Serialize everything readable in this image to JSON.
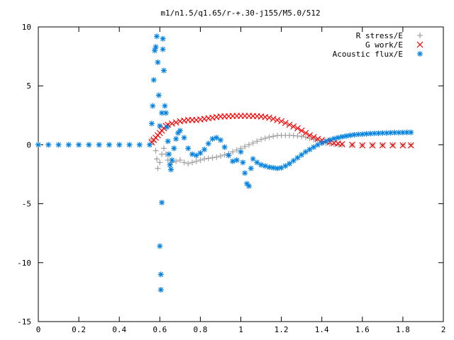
{
  "chart_data": {
    "type": "scatter",
    "title": "m1/n1.5/q1.65/r-+.30-j155/M5.0/512",
    "xlim": [
      0,
      2
    ],
    "ylim": [
      -15,
      10
    ],
    "x_ticks": [
      0,
      0.2,
      0.4,
      0.6,
      0.8,
      1,
      1.2,
      1.4,
      1.6,
      1.8,
      2
    ],
    "x_tick_labels": [
      "0",
      "0.2",
      "0.4",
      "0.6",
      "0.8",
      "1",
      "1.2",
      "1.4",
      "1.6",
      "1.8",
      "2"
    ],
    "y_ticks": [
      10,
      5,
      0,
      -5,
      -10,
      -15
    ],
    "y_tick_labels": [
      "10",
      "5",
      "0",
      "-5",
      "-10",
      "-15"
    ],
    "grid": false,
    "legend_position": "top-right",
    "series": [
      {
        "name": "R stress/E",
        "marker": "plus",
        "color": "#a0a0a0",
        "points": [
          [
            0.56,
            0.5
          ],
          [
            0.57,
            0.3
          ],
          [
            0.58,
            -0.5
          ],
          [
            0.585,
            -1.2
          ],
          [
            0.59,
            -2.0
          ],
          [
            0.6,
            -1.5
          ],
          [
            0.61,
            -0.8
          ],
          [
            0.62,
            -0.3
          ],
          [
            0.63,
            -0.8
          ],
          [
            0.64,
            -1.3
          ],
          [
            0.66,
            -1.5
          ],
          [
            0.68,
            -1.4
          ],
          [
            0.7,
            -1.3
          ],
          [
            0.72,
            -1.5
          ],
          [
            0.74,
            -1.6
          ],
          [
            0.76,
            -1.5
          ],
          [
            0.78,
            -1.4
          ],
          [
            0.8,
            -1.3
          ],
          [
            0.82,
            -1.2
          ],
          [
            0.84,
            -1.15
          ],
          [
            0.86,
            -1.1
          ],
          [
            0.88,
            -1.05
          ],
          [
            0.9,
            -0.95
          ],
          [
            0.92,
            -0.85
          ],
          [
            0.94,
            -0.75
          ],
          [
            0.96,
            -0.6
          ],
          [
            0.98,
            -0.45
          ],
          [
            1.0,
            -0.3
          ],
          [
            1.02,
            -0.15
          ],
          [
            1.04,
            0.0
          ],
          [
            1.06,
            0.15
          ],
          [
            1.08,
            0.3
          ],
          [
            1.1,
            0.45
          ],
          [
            1.12,
            0.55
          ],
          [
            1.14,
            0.65
          ],
          [
            1.16,
            0.72
          ],
          [
            1.18,
            0.78
          ],
          [
            1.2,
            0.8
          ],
          [
            1.22,
            0.8
          ],
          [
            1.24,
            0.8
          ],
          [
            1.26,
            0.78
          ],
          [
            1.28,
            0.75
          ],
          [
            1.3,
            0.7
          ],
          [
            1.32,
            0.65
          ],
          [
            1.34,
            0.55
          ],
          [
            1.36,
            0.45
          ],
          [
            1.38,
            0.35
          ],
          [
            1.4,
            0.25
          ],
          [
            1.42,
            0.15
          ],
          [
            1.44,
            0.08
          ],
          [
            1.46,
            0.03
          ],
          [
            1.48,
            0.0
          ],
          [
            1.5,
            -0.02
          ],
          [
            1.55,
            -0.03
          ],
          [
            1.6,
            -0.03
          ],
          [
            1.65,
            -0.02
          ],
          [
            1.7,
            -0.02
          ],
          [
            1.75,
            -0.01
          ],
          [
            1.8,
            -0.01
          ],
          [
            1.84,
            0.0
          ]
        ]
      },
      {
        "name": "G work/E",
        "marker": "cross",
        "color": "#ff0000",
        "points": [
          [
            0.56,
            0.2
          ],
          [
            0.57,
            0.4
          ],
          [
            0.58,
            0.6
          ],
          [
            0.59,
            0.8
          ],
          [
            0.6,
            1.0
          ],
          [
            0.61,
            1.2
          ],
          [
            0.62,
            1.4
          ],
          [
            0.63,
            1.6
          ],
          [
            0.64,
            1.7
          ],
          [
            0.66,
            1.8
          ],
          [
            0.68,
            1.9
          ],
          [
            0.7,
            2.0
          ],
          [
            0.72,
            2.05
          ],
          [
            0.74,
            2.1
          ],
          [
            0.76,
            2.1
          ],
          [
            0.78,
            2.1
          ],
          [
            0.8,
            2.15
          ],
          [
            0.82,
            2.2
          ],
          [
            0.84,
            2.25
          ],
          [
            0.86,
            2.3
          ],
          [
            0.88,
            2.35
          ],
          [
            0.9,
            2.4
          ],
          [
            0.92,
            2.4
          ],
          [
            0.94,
            2.42
          ],
          [
            0.96,
            2.44
          ],
          [
            0.98,
            2.45
          ],
          [
            1.0,
            2.45
          ],
          [
            1.02,
            2.45
          ],
          [
            1.04,
            2.45
          ],
          [
            1.06,
            2.44
          ],
          [
            1.08,
            2.42
          ],
          [
            1.1,
            2.4
          ],
          [
            1.12,
            2.35
          ],
          [
            1.14,
            2.3
          ],
          [
            1.16,
            2.2
          ],
          [
            1.18,
            2.1
          ],
          [
            1.2,
            2.0
          ],
          [
            1.22,
            1.85
          ],
          [
            1.24,
            1.7
          ],
          [
            1.26,
            1.55
          ],
          [
            1.28,
            1.4
          ],
          [
            1.3,
            1.2
          ],
          [
            1.32,
            1.0
          ],
          [
            1.34,
            0.8
          ],
          [
            1.36,
            0.65
          ],
          [
            1.38,
            0.5
          ],
          [
            1.4,
            0.4
          ],
          [
            1.42,
            0.3
          ],
          [
            1.44,
            0.22
          ],
          [
            1.46,
            0.15
          ],
          [
            1.48,
            0.1
          ],
          [
            1.5,
            0.05
          ],
          [
            1.55,
            0.0
          ],
          [
            1.6,
            -0.05
          ],
          [
            1.65,
            -0.05
          ],
          [
            1.7,
            -0.05
          ],
          [
            1.75,
            -0.05
          ],
          [
            1.8,
            -0.05
          ],
          [
            1.84,
            -0.05
          ]
        ]
      },
      {
        "name": "Acoustic flux/E",
        "marker": "star",
        "color": "#0080e0",
        "points": [
          [
            0.0,
            0.0
          ],
          [
            0.05,
            0.0
          ],
          [
            0.1,
            0.0
          ],
          [
            0.15,
            0.0
          ],
          [
            0.2,
            0.0
          ],
          [
            0.25,
            0.0
          ],
          [
            0.3,
            0.0
          ],
          [
            0.35,
            0.0
          ],
          [
            0.4,
            0.0
          ],
          [
            0.45,
            0.0
          ],
          [
            0.5,
            0.0
          ],
          [
            0.55,
            0.0
          ],
          [
            0.56,
            1.8
          ],
          [
            0.565,
            3.3
          ],
          [
            0.57,
            5.5
          ],
          [
            0.575,
            8.0
          ],
          [
            0.58,
            8.3
          ],
          [
            0.585,
            9.2
          ],
          [
            0.59,
            7.0
          ],
          [
            0.595,
            4.2
          ],
          [
            0.6,
            1.6
          ],
          [
            0.6,
            -8.6
          ],
          [
            0.605,
            -11.0
          ],
          [
            0.605,
            -12.3
          ],
          [
            0.61,
            -4.9
          ],
          [
            0.61,
            2.7
          ],
          [
            0.615,
            8.1
          ],
          [
            0.615,
            9.0
          ],
          [
            0.62,
            6.3
          ],
          [
            0.625,
            3.3
          ],
          [
            0.63,
            2.7
          ],
          [
            0.635,
            1.5
          ],
          [
            0.64,
            0.3
          ],
          [
            0.645,
            -0.8
          ],
          [
            0.65,
            -1.7
          ],
          [
            0.655,
            -2.1
          ],
          [
            0.66,
            -1.3
          ],
          [
            0.67,
            -0.3
          ],
          [
            0.68,
            0.5
          ],
          [
            0.69,
            1.0
          ],
          [
            0.7,
            1.2
          ],
          [
            0.72,
            0.6
          ],
          [
            0.74,
            -0.3
          ],
          [
            0.76,
            -0.8
          ],
          [
            0.78,
            -0.9
          ],
          [
            0.8,
            -0.7
          ],
          [
            0.82,
            -0.4
          ],
          [
            0.84,
            0.1
          ],
          [
            0.86,
            0.5
          ],
          [
            0.88,
            0.6
          ],
          [
            0.9,
            0.4
          ],
          [
            0.92,
            -0.2
          ],
          [
            0.94,
            -0.9
          ],
          [
            0.96,
            -1.4
          ],
          [
            0.98,
            -1.3
          ],
          [
            1.0,
            -0.6
          ],
          [
            1.01,
            -1.5
          ],
          [
            1.02,
            -2.4
          ],
          [
            1.03,
            -3.3
          ],
          [
            1.04,
            -3.5
          ],
          [
            1.05,
            -2.0
          ],
          [
            1.06,
            -1.2
          ],
          [
            1.08,
            -1.5
          ],
          [
            1.1,
            -1.7
          ],
          [
            1.12,
            -1.8
          ],
          [
            1.14,
            -1.9
          ],
          [
            1.16,
            -1.95
          ],
          [
            1.18,
            -2.0
          ],
          [
            1.2,
            -1.95
          ],
          [
            1.22,
            -1.8
          ],
          [
            1.24,
            -1.6
          ],
          [
            1.26,
            -1.35
          ],
          [
            1.28,
            -1.1
          ],
          [
            1.3,
            -0.85
          ],
          [
            1.32,
            -0.6
          ],
          [
            1.34,
            -0.4
          ],
          [
            1.36,
            -0.2
          ],
          [
            1.38,
            0.0
          ],
          [
            1.4,
            0.15
          ],
          [
            1.42,
            0.3
          ],
          [
            1.44,
            0.42
          ],
          [
            1.46,
            0.52
          ],
          [
            1.48,
            0.6
          ],
          [
            1.5,
            0.68
          ],
          [
            1.52,
            0.74
          ],
          [
            1.54,
            0.8
          ],
          [
            1.56,
            0.85
          ],
          [
            1.58,
            0.88
          ],
          [
            1.6,
            0.9
          ],
          [
            1.62,
            0.93
          ],
          [
            1.64,
            0.95
          ],
          [
            1.66,
            0.97
          ],
          [
            1.68,
            0.98
          ],
          [
            1.7,
            1.0
          ],
          [
            1.72,
            1.0
          ],
          [
            1.74,
            1.02
          ],
          [
            1.76,
            1.03
          ],
          [
            1.78,
            1.03
          ],
          [
            1.8,
            1.04
          ],
          [
            1.82,
            1.05
          ],
          [
            1.84,
            1.05
          ]
        ]
      }
    ]
  }
}
